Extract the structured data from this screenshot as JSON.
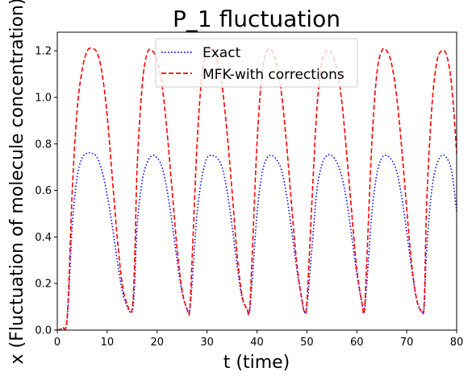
{
  "chart_data": {
    "type": "line",
    "title": "P_1 fluctuation",
    "xlabel": "t (time)",
    "ylabel": "x (Fluctuation of molecule concentration)",
    "xlim": [
      0,
      80
    ],
    "ylim": [
      0,
      1.28
    ],
    "xticks": [
      "0",
      "10",
      "20",
      "30",
      "40",
      "50",
      "60",
      "70",
      "80"
    ],
    "yticks": [
      "0.0",
      "0.2",
      "0.4",
      "0.6",
      "0.8",
      "1.0",
      "1.2"
    ],
    "legend_position": "top-right",
    "grid": false,
    "series": [
      {
        "name": "Exact",
        "color": "#0000ff",
        "style": "dotted",
        "x": [
          0,
          1,
          2,
          3,
          4,
          5,
          6,
          7,
          8,
          9,
          10,
          11,
          12,
          13,
          14,
          15,
          15.5,
          16,
          17,
          18,
          19,
          20,
          21,
          22,
          23,
          24,
          25,
          26,
          26.5,
          27,
          28,
          29,
          30,
          31,
          32,
          33,
          34,
          35,
          36,
          37,
          38,
          38.5,
          39,
          40,
          41,
          42,
          43,
          44,
          45,
          46,
          47,
          48,
          49,
          49.5,
          50,
          51,
          52,
          53,
          54,
          55,
          56,
          57,
          58,
          59,
          60,
          61,
          61.5,
          62,
          63,
          64,
          65,
          66,
          67,
          68,
          69,
          70,
          71,
          72,
          73,
          73.5,
          74,
          75,
          76,
          77,
          78,
          79,
          80
        ],
        "y": [
          0.0,
          0.01,
          0.05,
          0.45,
          0.66,
          0.74,
          0.76,
          0.76,
          0.74,
          0.68,
          0.58,
          0.45,
          0.3,
          0.17,
          0.1,
          0.08,
          0.2,
          0.45,
          0.64,
          0.72,
          0.75,
          0.74,
          0.7,
          0.6,
          0.46,
          0.3,
          0.16,
          0.09,
          0.08,
          0.2,
          0.5,
          0.66,
          0.74,
          0.75,
          0.74,
          0.7,
          0.6,
          0.45,
          0.28,
          0.14,
          0.09,
          0.08,
          0.2,
          0.5,
          0.67,
          0.74,
          0.75,
          0.73,
          0.68,
          0.57,
          0.42,
          0.26,
          0.13,
          0.08,
          0.1,
          0.35,
          0.6,
          0.71,
          0.75,
          0.75,
          0.72,
          0.66,
          0.55,
          0.4,
          0.24,
          0.12,
          0.08,
          0.2,
          0.5,
          0.67,
          0.74,
          0.75,
          0.73,
          0.68,
          0.57,
          0.42,
          0.26,
          0.13,
          0.08,
          0.1,
          0.35,
          0.6,
          0.71,
          0.75,
          0.74,
          0.68,
          0.51
        ]
      },
      {
        "name": "MFK-with corrections",
        "color": "#ff0000",
        "style": "dashed",
        "x": [
          0,
          1,
          2,
          3,
          4,
          5,
          6,
          7,
          8,
          9,
          10,
          11,
          12,
          13,
          14,
          15,
          15.5,
          16,
          17,
          18,
          19,
          20,
          21,
          22,
          23,
          24,
          25,
          26,
          26.5,
          27,
          28,
          29,
          30,
          31,
          32,
          33,
          34,
          35,
          36,
          37,
          38,
          38.5,
          39,
          40,
          41,
          42,
          43,
          44,
          45,
          46,
          47,
          48,
          49,
          49.5,
          50,
          51,
          52,
          53,
          54,
          55,
          56,
          57,
          58,
          59,
          60,
          61,
          61.5,
          62,
          63,
          64,
          65,
          66,
          67,
          68,
          69,
          70,
          71,
          72,
          73,
          73.5,
          74,
          75,
          76,
          77,
          78,
          79,
          80
        ],
        "y": [
          0.0,
          0.01,
          0.06,
          0.6,
          0.95,
          1.12,
          1.2,
          1.21,
          1.19,
          1.1,
          0.92,
          0.66,
          0.4,
          0.2,
          0.11,
          0.09,
          0.3,
          0.7,
          1.05,
          1.19,
          1.2,
          1.16,
          1.05,
          0.85,
          0.6,
          0.35,
          0.17,
          0.09,
          0.08,
          0.3,
          0.8,
          1.1,
          1.2,
          1.2,
          1.16,
          1.05,
          0.85,
          0.6,
          0.33,
          0.15,
          0.09,
          0.08,
          0.3,
          0.8,
          1.1,
          1.2,
          1.2,
          1.14,
          1.0,
          0.78,
          0.52,
          0.28,
          0.13,
          0.08,
          0.12,
          0.55,
          0.95,
          1.15,
          1.2,
          1.19,
          1.12,
          0.98,
          0.75,
          0.5,
          0.26,
          0.12,
          0.08,
          0.3,
          0.8,
          1.1,
          1.2,
          1.2,
          1.14,
          1.0,
          0.78,
          0.52,
          0.28,
          0.13,
          0.08,
          0.12,
          0.55,
          0.95,
          1.15,
          1.2,
          1.18,
          1.05,
          0.76
        ]
      }
    ]
  }
}
